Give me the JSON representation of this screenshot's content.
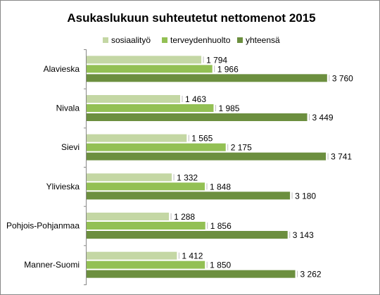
{
  "chart_data": {
    "type": "bar",
    "orientation": "horizontal",
    "title": "Asukaslukuun suhteutetut nettomenot 2015",
    "xlabel": "",
    "ylabel": "",
    "legend_position": "top",
    "grid": false,
    "xlim": [
      0,
      4400
    ],
    "categories": [
      "Alavieska",
      "Nivala",
      "Sievi",
      "Ylivieska",
      "Pohjois-Pohjanmaa",
      "Manner-Suomi"
    ],
    "series": [
      {
        "name": "sosiaalityö",
        "color": "#c4d7a4",
        "values": [
          1794,
          1463,
          1565,
          1332,
          1288,
          1412
        ],
        "labels": [
          "1 794",
          "1 463",
          "1 565",
          "1 332",
          "1 288",
          "1 412"
        ]
      },
      {
        "name": "terveydenhuolto",
        "color": "#93c054",
        "values": [
          1966,
          1985,
          2175,
          1848,
          1856,
          1850
        ],
        "labels": [
          "1 966",
          "1 985",
          "2 175",
          "1 848",
          "1 856",
          "1 850"
        ]
      },
      {
        "name": "yhteensä",
        "color": "#6c8f3f",
        "values": [
          3760,
          3449,
          3741,
          3180,
          3143,
          3262
        ],
        "labels": [
          "3 760",
          "3 449",
          "3 741",
          "3 180",
          "3 143",
          "3 262"
        ]
      }
    ]
  }
}
